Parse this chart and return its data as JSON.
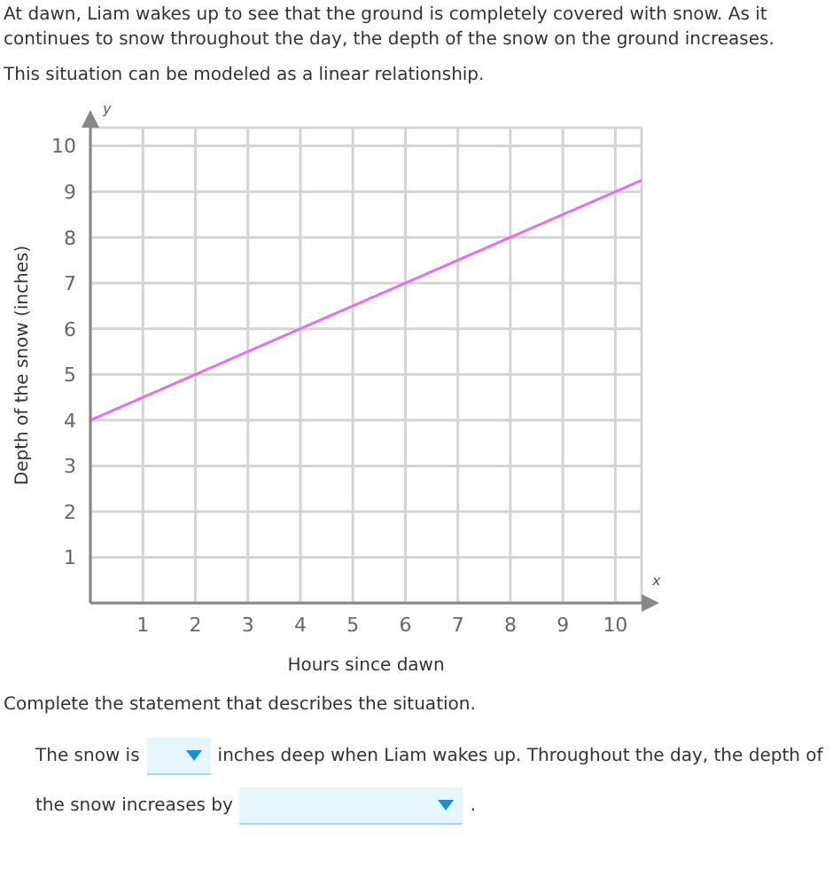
{
  "chart_data": {
    "type": "line",
    "title": "At dawn, Liam wakes up to see that the ground is completely covered with snow. As it continues to snow throughout the day, the depth of the snow on the ground increases.",
    "subtitle": "This situation can be modeled as a linear relationship.",
    "xlabel": "Hours since dawn",
    "ylabel": "Depth of the snow (inches)",
    "x": [
      0,
      10.5
    ],
    "series": [
      {
        "color": "#e46ef0",
        "values": [
          4,
          9.25
        ]
      }
    ],
    "xlim": [
      0,
      10.5
    ],
    "ylim": [
      0,
      10.4
    ],
    "xticks": [
      1,
      2,
      3,
      4,
      5,
      6,
      7,
      8,
      9,
      10
    ],
    "yticks": [
      1,
      2,
      3,
      4,
      5,
      6,
      7,
      8,
      9,
      10
    ],
    "grid": true,
    "marker": "none",
    "line_style": "solid",
    "annotations": [
      "x",
      "y",
      "Complete the statement that describes the situation.",
      "The snow is",
      "inches deep when Liam wakes up. Throughout the day, the depth of",
      "the snow increases by",
      "."
    ]
  }
}
